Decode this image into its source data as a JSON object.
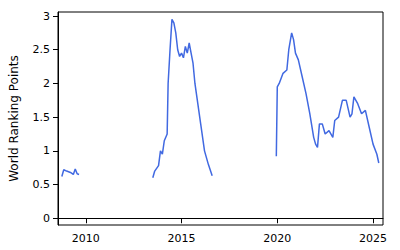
{
  "chart_data": {
    "type": "line",
    "y_label": "World Ranking Points",
    "color": "#4169e1",
    "grid": false,
    "x": [
      2008.75,
      2008.85,
      2009.0,
      2009.2,
      2009.35,
      2009.45,
      2009.55,
      2009.65,
      2011.0,
      2013.5,
      2013.6,
      2013.8,
      2013.9,
      2014.0,
      2014.1,
      2014.25,
      2014.3,
      2014.4,
      2014.5,
      2014.6,
      2014.7,
      2014.8,
      2014.9,
      2015.0,
      2015.1,
      2015.2,
      2015.3,
      2015.4,
      2015.5,
      2015.6,
      2015.7,
      2015.85,
      2016.0,
      2016.2,
      2016.4,
      2016.6,
      2018.0,
      2019.95,
      2020.0,
      2020.1,
      2020.3,
      2020.5,
      2020.6,
      2020.75,
      2020.85,
      2020.95,
      2021.1,
      2021.3,
      2021.5,
      2021.7,
      2021.9,
      2022.0,
      2022.1,
      2022.2,
      2022.35,
      2022.5,
      2022.7,
      2022.9,
      2023.0,
      2023.2,
      2023.4,
      2023.6,
      2023.8,
      2023.9,
      2024.0,
      2024.2,
      2024.4,
      2024.6,
      2024.8,
      2025.0,
      2025.2,
      2025.3
    ],
    "values": [
      0.62,
      0.72,
      0.7,
      0.68,
      0.65,
      0.73,
      0.66,
      0.65,
      null,
      0.6,
      0.7,
      0.78,
      1.0,
      0.95,
      1.15,
      1.25,
      2.0,
      2.5,
      2.95,
      2.9,
      2.75,
      2.5,
      2.4,
      2.45,
      2.38,
      2.55,
      2.45,
      2.6,
      2.45,
      2.3,
      2.0,
      1.7,
      1.4,
      1.0,
      0.8,
      0.63,
      null,
      0.92,
      1.95,
      2.0,
      2.15,
      2.2,
      2.5,
      2.75,
      2.65,
      2.45,
      2.35,
      2.1,
      1.85,
      1.55,
      1.2,
      1.1,
      1.05,
      1.4,
      1.4,
      1.25,
      1.3,
      1.2,
      1.45,
      1.5,
      1.75,
      1.75,
      1.5,
      1.55,
      1.8,
      1.7,
      1.55,
      1.6,
      1.35,
      1.1,
      0.95,
      0.82
    ],
    "xlim": [
      2008.55,
      2025.52
    ],
    "xticks": [
      2010,
      2015,
      2020,
      2025
    ],
    "ylim": [
      -0.1,
      3.06
    ],
    "yticks": [
      0,
      0.5,
      1,
      1.5,
      2,
      2.5,
      3
    ]
  }
}
